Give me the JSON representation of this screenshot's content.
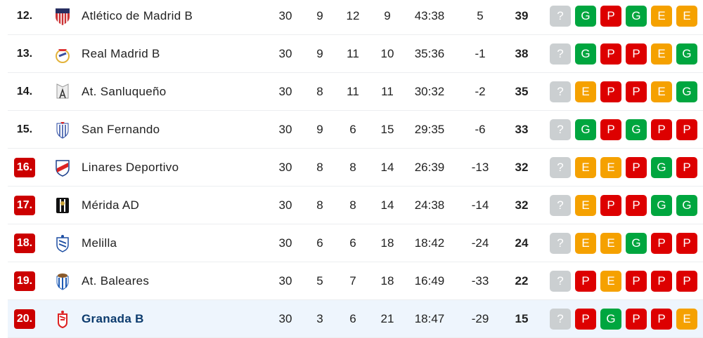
{
  "colors": {
    "G": "#00a63f",
    "P": "#dd0000",
    "E": "#f5a100",
    "?": "#cbcfd1",
    "relegation": "#c00000",
    "highlight": "#eef5fd"
  },
  "rows": [
    {
      "rank": "12.",
      "team": "Atlético de Madrid B",
      "played": "30",
      "won": "9",
      "drawn": "12",
      "lost": "9",
      "goals": "43:38",
      "diff": "5",
      "points": "39",
      "form": [
        "?",
        "G",
        "P",
        "G",
        "E",
        "E"
      ],
      "relegation": false,
      "logo": "atletico-crest-icon"
    },
    {
      "rank": "13.",
      "team": "Real Madrid B",
      "played": "30",
      "won": "9",
      "drawn": "11",
      "lost": "10",
      "goals": "35:36",
      "diff": "-1",
      "points": "38",
      "form": [
        "?",
        "G",
        "P",
        "P",
        "E",
        "G"
      ],
      "relegation": false,
      "logo": "real-madrid-crest-icon"
    },
    {
      "rank": "14.",
      "team": "At. Sanluqueño",
      "played": "30",
      "won": "8",
      "drawn": "11",
      "lost": "11",
      "goals": "30:32",
      "diff": "-2",
      "points": "35",
      "form": [
        "?",
        "E",
        "P",
        "P",
        "E",
        "G"
      ],
      "relegation": false,
      "logo": "sanluqueno-crest-icon"
    },
    {
      "rank": "15.",
      "team": "San Fernando",
      "played": "30",
      "won": "9",
      "drawn": "6",
      "lost": "15",
      "goals": "29:35",
      "diff": "-6",
      "points": "33",
      "form": [
        "?",
        "G",
        "P",
        "G",
        "P",
        "P"
      ],
      "relegation": false,
      "logo": "san-fernando-crest-icon"
    },
    {
      "rank": "16.",
      "team": "Linares Deportivo",
      "played": "30",
      "won": "8",
      "drawn": "8",
      "lost": "14",
      "goals": "26:39",
      "diff": "-13",
      "points": "32",
      "form": [
        "?",
        "E",
        "E",
        "P",
        "G",
        "P"
      ],
      "relegation": true,
      "logo": "linares-crest-icon"
    },
    {
      "rank": "17.",
      "team": "Mérida AD",
      "played": "30",
      "won": "8",
      "drawn": "8",
      "lost": "14",
      "goals": "24:38",
      "diff": "-14",
      "points": "32",
      "form": [
        "?",
        "E",
        "P",
        "P",
        "G",
        "G"
      ],
      "relegation": true,
      "logo": "merida-crest-icon"
    },
    {
      "rank": "18.",
      "team": "Melilla",
      "played": "30",
      "won": "6",
      "drawn": "6",
      "lost": "18",
      "goals": "18:42",
      "diff": "-24",
      "points": "24",
      "form": [
        "?",
        "E",
        "E",
        "G",
        "P",
        "P"
      ],
      "relegation": true,
      "logo": "melilla-crest-icon"
    },
    {
      "rank": "19.",
      "team": "At. Baleares",
      "played": "30",
      "won": "5",
      "drawn": "7",
      "lost": "18",
      "goals": "16:49",
      "diff": "-33",
      "points": "22",
      "form": [
        "?",
        "P",
        "E",
        "P",
        "P",
        "P"
      ],
      "relegation": true,
      "logo": "baleares-crest-icon"
    },
    {
      "rank": "20.",
      "team": "Granada B",
      "played": "30",
      "won": "3",
      "drawn": "6",
      "lost": "21",
      "goals": "18:47",
      "diff": "-29",
      "points": "15",
      "form": [
        "?",
        "P",
        "G",
        "P",
        "P",
        "E"
      ],
      "relegation": true,
      "highlight": true,
      "logo": "granada-crest-icon"
    }
  ]
}
